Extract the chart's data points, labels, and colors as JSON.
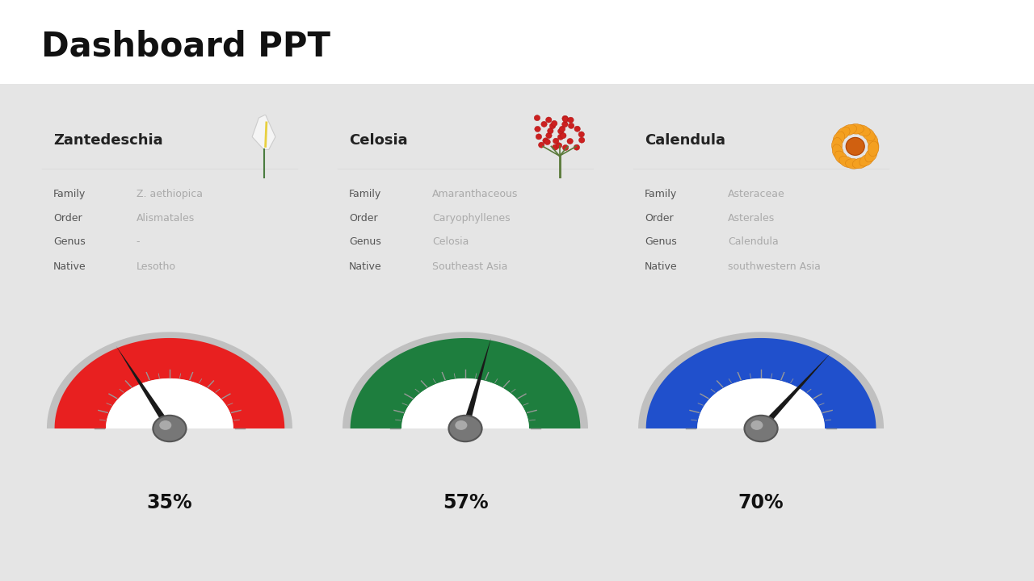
{
  "title": "Dashboard PPT",
  "bg_top": "#ffffff",
  "bg_bottom": "#e8e8e8",
  "card_bg": "#ffffff",
  "card_edge": "#dddddd",
  "plants": [
    {
      "name": "Zantedeschia",
      "family": "Z. aethiopica",
      "order": "Alismatales",
      "genus": "-",
      "native": "Lesotho"
    },
    {
      "name": "Celosia",
      "family": "Amaranthaceous",
      "order": "Caryophyllenes",
      "genus": "Celosia",
      "native": "Southeast Asia"
    },
    {
      "name": "Calendula",
      "family": "Asteraceae",
      "order": "Asterales",
      "genus": "Calendula",
      "native": "southwestern Asia"
    }
  ],
  "gauges": [
    {
      "value": 35,
      "color": "#e82020",
      "label": "35%"
    },
    {
      "value": 57,
      "color": "#1e7e3e",
      "label": "57%"
    },
    {
      "value": 70,
      "color": "#2050cc",
      "label": "70%"
    }
  ],
  "label_color": "#555555",
  "value_color": "#aaaaaa",
  "name_color": "#222222",
  "divider_color": "#dddddd",
  "title_color": "#111111",
  "title_fontsize": 30,
  "label_fontsize": 9,
  "value_fontsize": 9,
  "name_fontsize": 13,
  "gauge_pct_fontsize": 17
}
